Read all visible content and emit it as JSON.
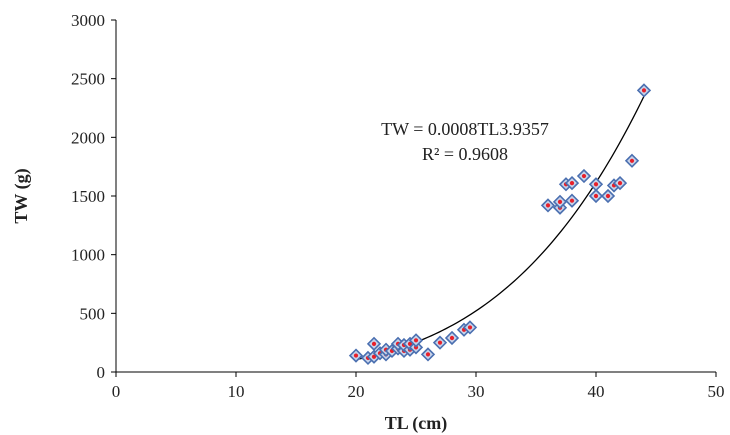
{
  "chart_data": {
    "type": "scatter",
    "title": "",
    "xlabel": "TL (cm)",
    "ylabel": "TW (g)",
    "xlim": [
      0,
      50
    ],
    "ylim": [
      0,
      3000
    ],
    "xticks": [
      0,
      10,
      20,
      30,
      40,
      50
    ],
    "yticks": [
      0,
      500,
      1000,
      1500,
      2000,
      2500,
      3000
    ],
    "grid": false,
    "legend": "none",
    "marker": "diamond",
    "marker_color": "#4a6fb0",
    "marker_fill": "#c7d3ea",
    "marker_center_color": "#e8202a",
    "trendline_color": "#000000",
    "x": [
      20,
      21,
      21.5,
      21.5,
      22,
      22.5,
      22.5,
      23,
      23.5,
      23.5,
      24,
      24,
      24.5,
      24.5,
      25,
      25,
      26,
      27,
      28,
      29,
      29.5,
      36,
      37,
      37,
      37.5,
      38,
      38,
      39,
      40,
      40,
      41,
      41.5,
      42,
      43,
      44
    ],
    "y": [
      140,
      120,
      130,
      240,
      160,
      150,
      190,
      180,
      200,
      240,
      180,
      230,
      190,
      240,
      210,
      270,
      150,
      250,
      290,
      360,
      380,
      1420,
      1400,
      1450,
      1600,
      1460,
      1610,
      1670,
      1500,
      1600,
      1500,
      1590,
      1610,
      1800,
      2400
    ],
    "trendline": {
      "type": "power",
      "a": 0.0008,
      "b": 3.9357,
      "x_range": [
        20,
        44
      ],
      "equation_label": "TW = 0.0008TL3.9357",
      "r2_label": "R² = 0.9608"
    }
  }
}
